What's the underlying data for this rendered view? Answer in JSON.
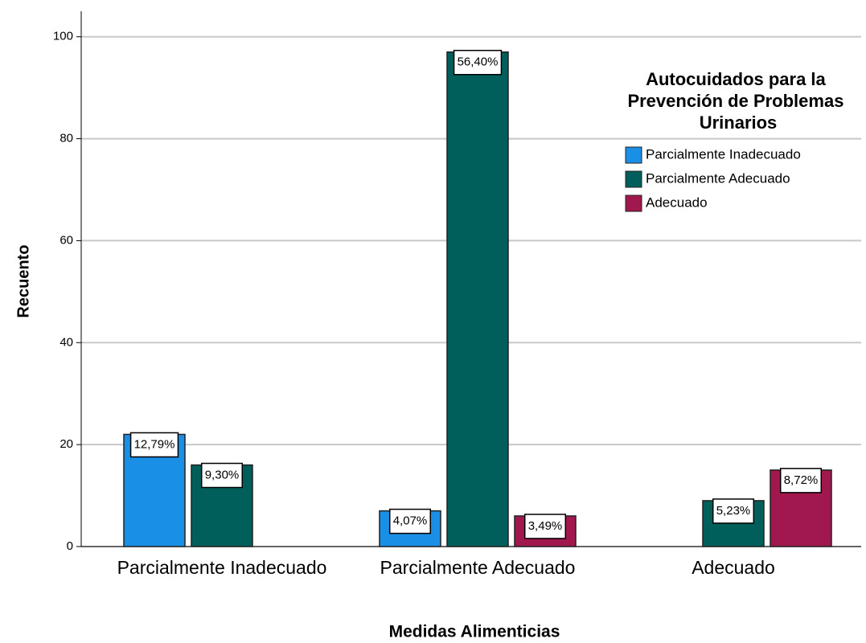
{
  "chart_data": {
    "type": "bar",
    "x_label": "Medidas Alimenticias",
    "y_label": "Recuento",
    "legend_title": "Autocuidados para la Prevención de Problemas Urinarios",
    "categories": [
      "Parcialmente Inadecuado",
      "Parcialmente Adecuado",
      "Adecuado"
    ],
    "series": [
      {
        "name": "Parcialmente Inadecuado",
        "color": "#1a8fe6",
        "values": [
          22,
          7,
          null
        ],
        "value_labels": [
          "12,79%",
          "4,07%",
          null
        ]
      },
      {
        "name": "Parcialmente Adecuado",
        "color": "#005f5a",
        "values": [
          16,
          97,
          9
        ],
        "value_labels": [
          "9,30%",
          "56,40%",
          "5,23%"
        ]
      },
      {
        "name": "Adecuado",
        "color": "#a0184e",
        "values": [
          null,
          6,
          15
        ],
        "value_labels": [
          null,
          "3,49%",
          "8,72%"
        ]
      }
    ],
    "ylim": [
      0,
      105
    ],
    "yticks": [
      0,
      20,
      40,
      60,
      80,
      100
    ],
    "grid": true,
    "legend": "upper right"
  }
}
